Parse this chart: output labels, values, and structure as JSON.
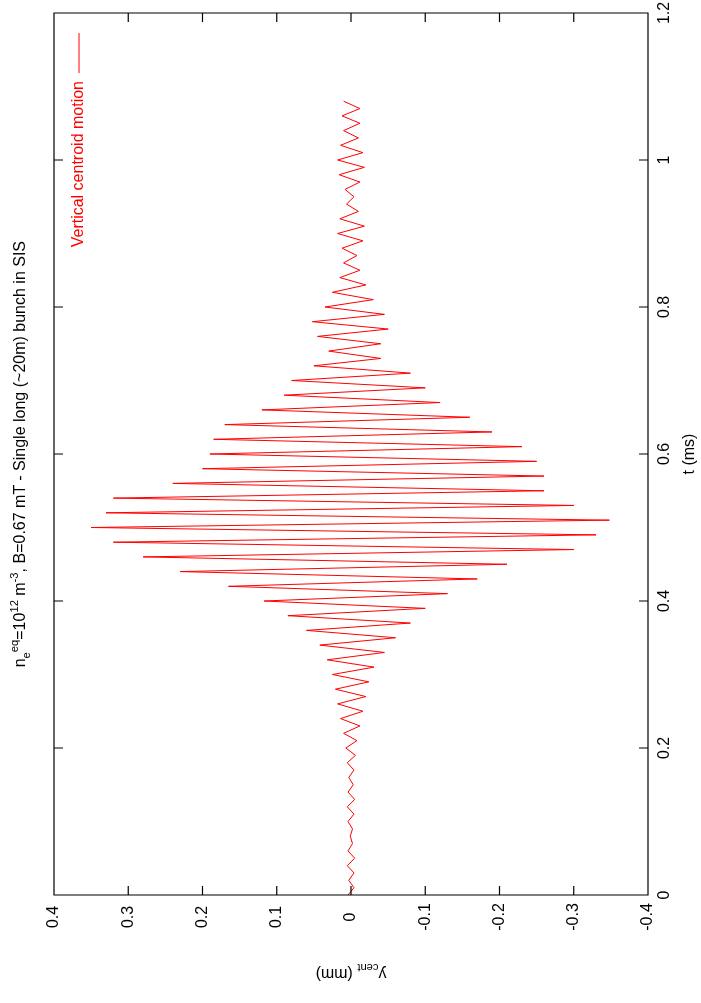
{
  "chart_data": {
    "type": "line",
    "title": "n$_{e}$$^{eq}$=10$^{12}$ m$^{-3}$, B=0.67 mT - Single long (~20m) bunch in SIS",
    "xlabel": "y$_{cent}$ (mm)",
    "ylabel": "t (ms)",
    "legend": "top left",
    "xlim": [
      0.4,
      -0.4
    ],
    "xticks": [
      0.4,
      0.3,
      0.2,
      0.1,
      0,
      -0.1,
      -0.2,
      -0.3,
      -0.4
    ],
    "ylim": [
      0,
      1.2
    ],
    "yticks": [
      0,
      0.2,
      0.4,
      0.6,
      0.8,
      1,
      1.2
    ],
    "x": [
      0.004,
      -0.004,
      0.003,
      -0.004,
      0.005,
      -0.005,
      0.004,
      -0.002,
      0.001,
      -0.002,
      0.004,
      -0.004,
      0.005,
      -0.005,
      0.004,
      -0.003,
      0.003,
      -0.004,
      0.005,
      -0.006,
      0.007,
      -0.008,
      0.01,
      -0.012,
      0.014,
      -0.016,
      0.018,
      -0.02,
      0.021,
      -0.024,
      0.025,
      -0.031,
      0.032,
      -0.045,
      0.042,
      -0.06,
      0.06,
      -0.08,
      0.085,
      -0.1,
      0.117,
      -0.13,
      0.165,
      -0.17,
      0.23,
      -0.21,
      0.28,
      -0.3,
      0.32,
      -0.33,
      0.35,
      -0.348,
      0.33,
      -0.3,
      0.32,
      -0.26,
      0.24,
      -0.26,
      0.2,
      -0.25,
      0.19,
      -0.23,
      0.185,
      -0.19,
      0.17,
      -0.16,
      0.12,
      -0.12,
      0.09,
      -0.1,
      0.08,
      -0.08,
      0.05,
      -0.04,
      0.03,
      -0.04,
      0.045,
      -0.05,
      0.052,
      -0.045,
      0.035,
      -0.03,
      0.025,
      -0.02,
      0.015,
      -0.012,
      0.01,
      -0.008,
      0.012,
      -0.016,
      0.018,
      -0.018,
      0.015,
      -0.01,
      0.006,
      -0.004,
      0.008,
      -0.012,
      0.016,
      -0.018,
      0.018,
      -0.016,
      0.014,
      -0.01,
      0.01,
      -0.012,
      0.012,
      -0.012,
      0.01
    ],
    "series": [
      {
        "name": "Vertical centroid motion",
        "color": "#ff0000",
        "values": [
          0,
          0.01,
          0.02,
          0.03,
          0.04,
          0.05,
          0.06,
          0.07,
          0.08,
          0.09,
          0.1,
          0.11,
          0.12,
          0.13,
          0.14,
          0.15,
          0.16,
          0.17,
          0.18,
          0.19,
          0.2,
          0.21,
          0.22,
          0.23,
          0.24,
          0.25,
          0.26,
          0.27,
          0.28,
          0.29,
          0.3,
          0.31,
          0.32,
          0.33,
          0.34,
          0.35,
          0.36,
          0.37,
          0.38,
          0.39,
          0.4,
          0.41,
          0.42,
          0.43,
          0.44,
          0.45,
          0.46,
          0.47,
          0.48,
          0.49,
          0.5,
          0.51,
          0.52,
          0.53,
          0.54,
          0.55,
          0.56,
          0.57,
          0.58,
          0.59,
          0.6,
          0.61,
          0.62,
          0.63,
          0.64,
          0.65,
          0.66,
          0.67,
          0.68,
          0.69,
          0.7,
          0.71,
          0.72,
          0.73,
          0.74,
          0.75,
          0.76,
          0.77,
          0.78,
          0.79,
          0.8,
          0.81,
          0.82,
          0.83,
          0.84,
          0.85,
          0.86,
          0.87,
          0.88,
          0.89,
          0.9,
          0.91,
          0.92,
          0.93,
          0.94,
          0.95,
          0.96,
          0.97,
          0.98,
          0.99,
          1,
          1.01,
          1.02,
          1.03,
          1.04,
          1.05,
          1.06,
          1.07,
          1.08
        ]
      }
    ]
  }
}
